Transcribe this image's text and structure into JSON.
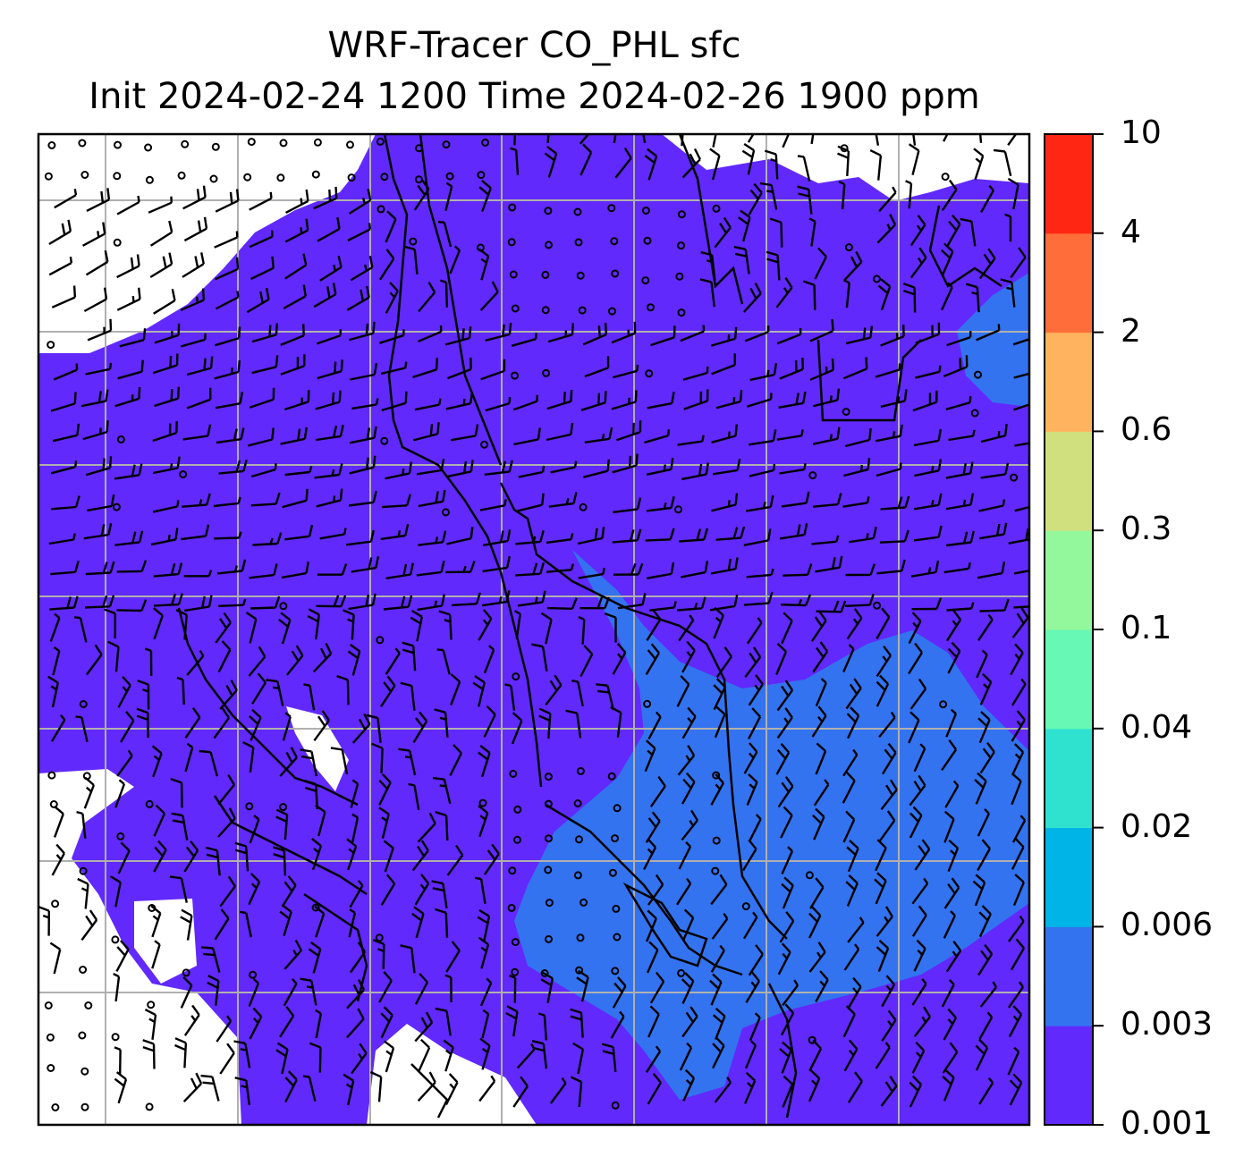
{
  "title": {
    "line1": "WRF-Tracer CO_PHL sfc",
    "line2": "Init 2024-02-24 1200 Time 2024-02-26 1900 ppm"
  },
  "colorbar": {
    "levels": [
      "0.001",
      "0.003",
      "0.006",
      "0.02",
      "0.04",
      "0.1",
      "0.3",
      "0.6",
      "2",
      "4",
      "10"
    ],
    "colors": [
      "#6129fb",
      "#3373f0",
      "#00b4e8",
      "#2fe2d0",
      "#66f8b4",
      "#93f89c",
      "#d1e07e",
      "#ffb35f",
      "#ff6e3a",
      "#ff2614"
    ]
  },
  "map": {
    "background_color": "#ffffff",
    "field_fill_levels": {
      "main_plume": "0.001-0.003",
      "inner_plume": "0.003-0.006"
    },
    "gridlines": true,
    "overlays": [
      "coastlines",
      "state-borders",
      "wind-barbs",
      "calm-wind-circles"
    ]
  }
}
